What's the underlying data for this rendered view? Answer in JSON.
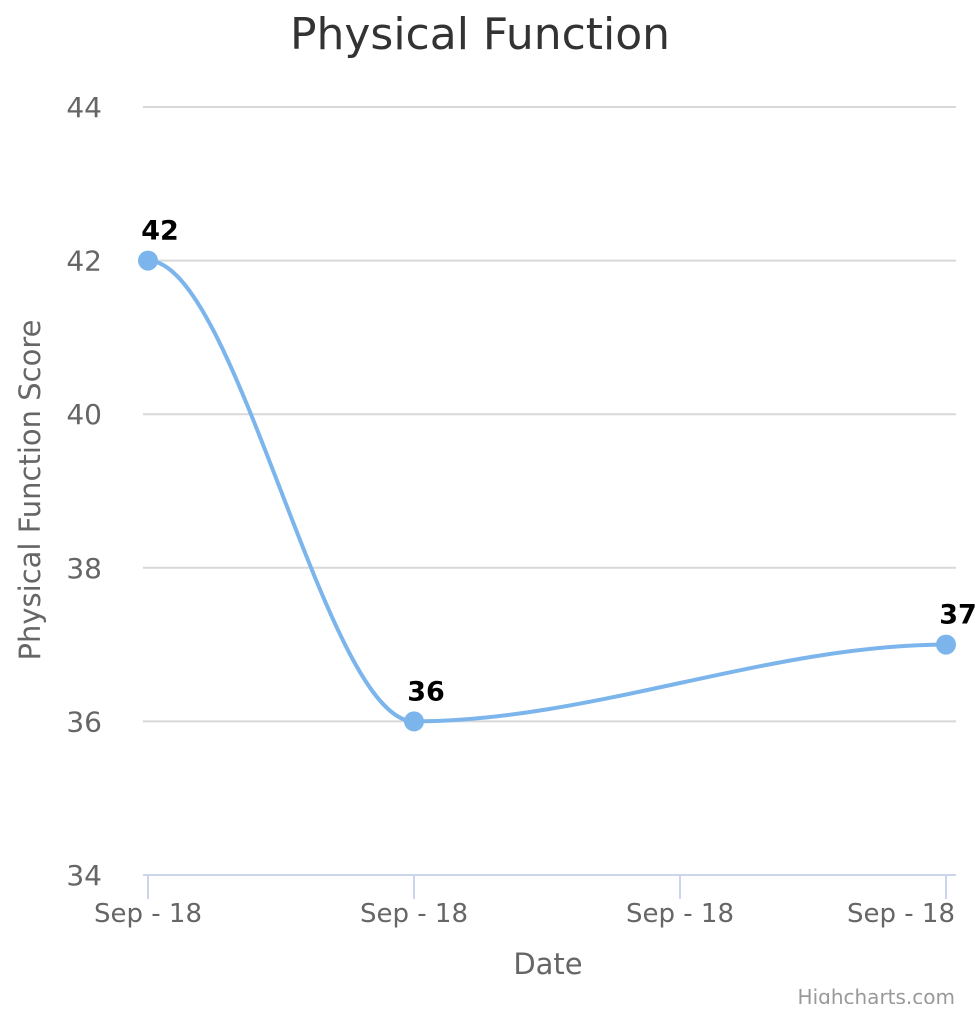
{
  "chart_data": {
    "type": "line",
    "title": "Physical Function",
    "xlabel": "Date",
    "ylabel": "Physical Function Score",
    "x_tick_labels": [
      "Sep - 18",
      "Sep - 18",
      "Sep - 18",
      "Sep - 18"
    ],
    "y_ticks": [
      34,
      36,
      38,
      40,
      42,
      44
    ],
    "ylim": [
      34,
      44
    ],
    "grid": true,
    "smooth": true,
    "series": [
      {
        "color": "#7cb5ec",
        "points": [
          {
            "tick": 0,
            "y": 42
          },
          {
            "tick": 1,
            "y": 36
          },
          {
            "tick": 3,
            "y": 37
          }
        ]
      }
    ],
    "credits": "Highcharts.com"
  }
}
